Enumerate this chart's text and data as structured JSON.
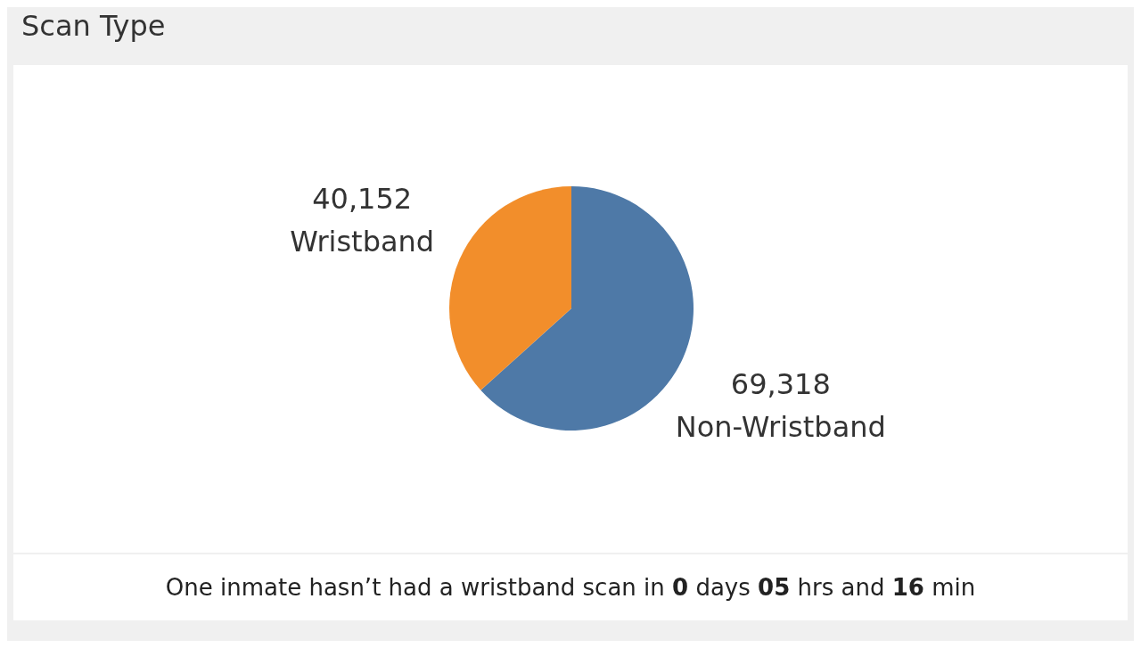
{
  "chart_data": {
    "type": "pie",
    "title": "Scan Type",
    "categories": [
      "Non-Wristband",
      "Wristband"
    ],
    "values": [
      69318,
      40152
    ],
    "colors": [
      "#4e79a7",
      "#f28e2b"
    ],
    "value_labels": [
      "69,318",
      "40,152"
    ],
    "annotations": [
      "One inmate hasn’t had a wristband scan in 0 days 05 hrs and 16 min"
    ]
  }
}
